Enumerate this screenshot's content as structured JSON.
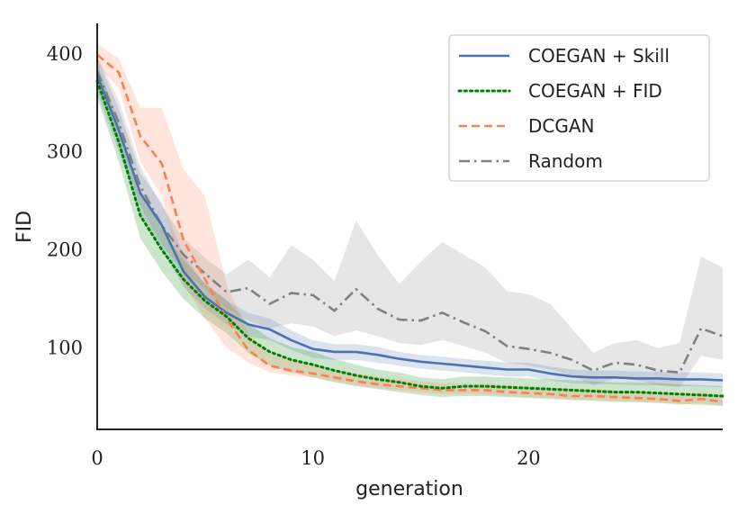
{
  "chart_data": {
    "type": "line",
    "xlabel": "generation",
    "ylabel": "FID",
    "xlim": [
      0,
      29
    ],
    "ylim": [
      17,
      431
    ],
    "xticks": [
      0,
      10,
      20
    ],
    "yticks": [
      100,
      200,
      300,
      400
    ],
    "legend_position": "top-right",
    "x": [
      0,
      1,
      2,
      3,
      4,
      5,
      6,
      7,
      8,
      9,
      10,
      11,
      12,
      13,
      14,
      15,
      16,
      17,
      18,
      19,
      20,
      21,
      22,
      23,
      24,
      25,
      26,
      27,
      28,
      29
    ],
    "series": [
      {
        "name": "COEGAN + Skill",
        "color": "#4c72b0",
        "dash": "solid",
        "values": [
          378,
          322,
          258,
          225,
          178,
          152,
          136,
          124,
          119,
          108,
          99,
          96,
          96,
          93,
          89,
          86,
          84,
          82,
          80,
          78,
          78,
          74,
          71,
          70,
          70,
          69,
          69,
          68,
          68,
          67
        ],
        "lower": [
          360,
          300,
          238,
          202,
          162,
          140,
          124,
          112,
          108,
          98,
          90,
          88,
          88,
          85,
          82,
          79,
          77,
          75,
          73,
          71,
          71,
          67,
          64,
          63,
          63,
          62,
          62,
          61,
          61,
          60
        ],
        "upper": [
          396,
          344,
          278,
          248,
          195,
          165,
          148,
          136,
          130,
          118,
          108,
          104,
          104,
          101,
          96,
          93,
          91,
          89,
          87,
          85,
          85,
          81,
          78,
          77,
          77,
          76,
          76,
          75,
          75,
          74
        ]
      },
      {
        "name": "COEGAN + FID",
        "color": "#008000",
        "dash": "dotted",
        "values": [
          372,
          310,
          235,
          200,
          170,
          148,
          132,
          110,
          96,
          88,
          83,
          77,
          72,
          68,
          65,
          61,
          59,
          61,
          61,
          60,
          59,
          58,
          57,
          56,
          55,
          55,
          54,
          53,
          52,
          51
        ],
        "lower": [
          355,
          290,
          212,
          178,
          150,
          130,
          115,
          95,
          82,
          75,
          70,
          65,
          61,
          58,
          55,
          52,
          50,
          51,
          51,
          50,
          49,
          48,
          47,
          46,
          45,
          45,
          44,
          43,
          42,
          41
        ],
        "upper": [
          390,
          330,
          258,
          222,
          190,
          166,
          149,
          125,
          110,
          101,
          96,
          89,
          83,
          78,
          75,
          70,
          68,
          71,
          71,
          70,
          69,
          68,
          67,
          66,
          65,
          65,
          64,
          63,
          62,
          61
        ]
      },
      {
        "name": "DCGAN",
        "color": "#ff7f50",
        "dash": "dashed",
        "values": [
          399,
          381,
          316,
          288,
          210,
          170,
          130,
          98,
          82,
          77,
          74,
          70,
          66,
          63,
          61,
          59,
          57,
          57,
          57,
          55,
          54,
          53,
          51,
          51,
          50,
          49,
          48,
          46,
          48,
          45
        ],
        "lower": [
          388,
          365,
          290,
          255,
          165,
          130,
          100,
          85,
          75,
          72,
          70,
          66,
          62,
          59,
          57,
          55,
          53,
          53,
          53,
          51,
          50,
          49,
          47,
          47,
          46,
          45,
          44,
          42,
          44,
          41
        ],
        "upper": [
          410,
          395,
          345,
          345,
          282,
          255,
          165,
          115,
          93,
          87,
          83,
          78,
          74,
          71,
          68,
          66,
          64,
          64,
          64,
          62,
          61,
          60,
          58,
          58,
          57,
          56,
          55,
          53,
          55,
          52
        ]
      },
      {
        "name": "Random",
        "color": "#808080",
        "dash": "dashdot",
        "values": [
          382,
          330,
          265,
          225,
          195,
          176,
          157,
          161,
          145,
          156,
          154,
          138,
          160,
          140,
          129,
          128,
          136,
          126,
          117,
          102,
          99,
          95,
          88,
          77,
          85,
          83,
          77,
          75,
          120,
          112
        ],
        "lower": [
          365,
          310,
          245,
          205,
          178,
          160,
          140,
          128,
          120,
          125,
          122,
          112,
          118,
          112,
          105,
          103,
          108,
          102,
          95,
          85,
          82,
          78,
          72,
          62,
          69,
          67,
          62,
          60,
          92,
          88
        ],
        "upper": [
          398,
          352,
          285,
          245,
          212,
          192,
          175,
          190,
          172,
          205,
          190,
          168,
          230,
          195,
          165,
          188,
          208,
          195,
          182,
          158,
          155,
          145,
          120,
          95,
          105,
          108,
          100,
          105,
          193,
          182
        ]
      }
    ]
  }
}
